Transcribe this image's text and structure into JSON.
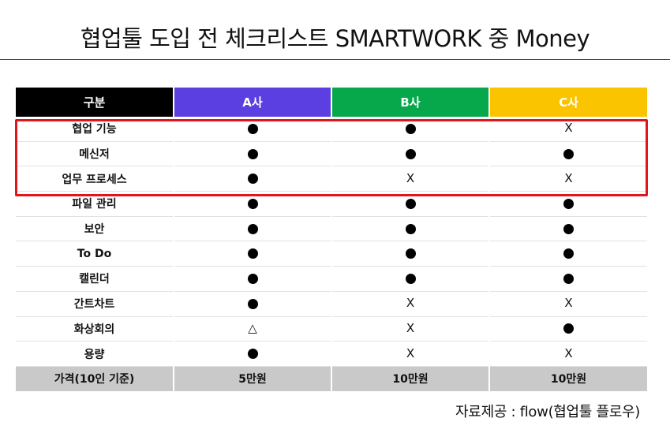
{
  "title": "협업툴 도입 전 체크리스트 SMARTWORK 중 Money",
  "table": {
    "headers": [
      {
        "label": "구분",
        "color": "#000000"
      },
      {
        "label": "A사",
        "color": "#5b3fe0"
      },
      {
        "label": "B사",
        "color": "#07a84b"
      },
      {
        "label": "C사",
        "color": "#fbc400"
      }
    ],
    "rows": [
      {
        "label": "협업 기능",
        "values": [
          "dot",
          "dot",
          "X"
        ]
      },
      {
        "label": "메신저",
        "values": [
          "dot",
          "dot",
          "dot"
        ]
      },
      {
        "label": "업무 프로세스",
        "values": [
          "dot",
          "X",
          "X"
        ]
      },
      {
        "label": "파일 관리",
        "values": [
          "dot",
          "dot",
          "dot"
        ]
      },
      {
        "label": "보안",
        "values": [
          "dot",
          "dot",
          "dot"
        ]
      },
      {
        "label": "To Do",
        "values": [
          "dot",
          "dot",
          "dot"
        ]
      },
      {
        "label": "캘린더",
        "values": [
          "dot",
          "dot",
          "dot"
        ]
      },
      {
        "label": "간트차트",
        "values": [
          "dot",
          "X",
          "X"
        ]
      },
      {
        "label": "화상회의",
        "values": [
          "△",
          "X",
          "dot"
        ]
      },
      {
        "label": "용량",
        "values": [
          "dot",
          "X",
          "X"
        ]
      }
    ],
    "price_row": {
      "label": "가격(10인 기준)",
      "values": [
        "5만원",
        "10만원",
        "10만원"
      ]
    },
    "highlight_color": "#e0161d"
  },
  "source": "자료제공 : flow(협업툴 플로우)"
}
